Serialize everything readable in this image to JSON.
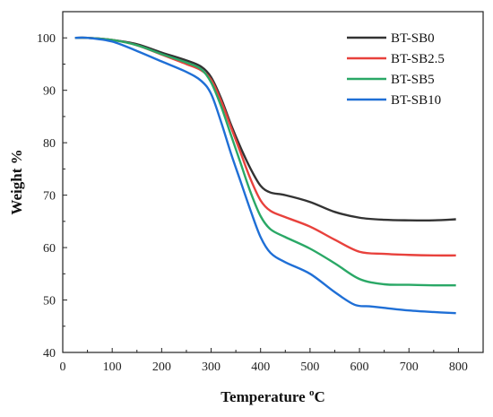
{
  "chart_data": {
    "type": "line",
    "xlabel": "Temperature",
    "xlabel_sup": "o",
    "xlabel_unit": "C",
    "ylabel": "Weight %",
    "xlim": [
      0,
      850
    ],
    "ylim": [
      40,
      105
    ],
    "xticks": [
      "0",
      "100",
      "200",
      "300",
      "400",
      "500",
      "600",
      "700",
      "800"
    ],
    "yticks": [
      "40",
      "50",
      "60",
      "70",
      "80",
      "90",
      "100"
    ],
    "grid": false,
    "legend_position": "top-right",
    "series": [
      {
        "name": "BT-SB0",
        "color": "#333333",
        "x": [
          25,
          50,
          100,
          150,
          200,
          250,
          280,
          300,
          320,
          340,
          360,
          380,
          400,
          420,
          450,
          500,
          550,
          600,
          650,
          700,
          750,
          795
        ],
        "y": [
          100,
          100,
          99.6,
          98.8,
          97.2,
          95.7,
          94.5,
          92.5,
          88.5,
          83.5,
          79,
          75,
          71.8,
          70.5,
          70,
          68.7,
          66.8,
          65.7,
          65.3,
          65.2,
          65.2,
          65.4
        ]
      },
      {
        "name": "BT-SB2.5",
        "color": "#e8413c",
        "x": [
          25,
          50,
          100,
          150,
          200,
          250,
          280,
          300,
          320,
          340,
          360,
          380,
          400,
          420,
          450,
          500,
          550,
          600,
          650,
          700,
          750,
          795
        ],
        "y": [
          100,
          100,
          99.6,
          98.6,
          96.8,
          95,
          93.8,
          92,
          88,
          83,
          78,
          73,
          69,
          67,
          65.8,
          64,
          61.5,
          59.2,
          58.8,
          58.6,
          58.5,
          58.5
        ]
      },
      {
        "name": "BT-SB5",
        "color": "#2aa866",
        "x": [
          25,
          50,
          100,
          150,
          200,
          250,
          280,
          300,
          320,
          340,
          360,
          380,
          400,
          420,
          450,
          500,
          550,
          600,
          650,
          700,
          750,
          795
        ],
        "y": [
          100,
          100,
          99.6,
          98.6,
          96.9,
          95.3,
          94,
          91.5,
          87,
          81.5,
          76,
          70.5,
          66,
          63.5,
          62,
          59.8,
          57,
          54,
          53,
          52.9,
          52.8,
          52.8
        ]
      },
      {
        "name": "BT-SB10",
        "color": "#1f6fd6",
        "x": [
          25,
          50,
          100,
          150,
          200,
          250,
          280,
          300,
          320,
          340,
          360,
          380,
          400,
          420,
          450,
          500,
          550,
          590,
          620,
          650,
          700,
          750,
          795
        ],
        "y": [
          100,
          100,
          99.3,
          97.5,
          95.5,
          93.5,
          91.8,
          89.3,
          84,
          78,
          72.5,
          67,
          62,
          59,
          57.2,
          55,
          51.5,
          49.1,
          48.8,
          48.5,
          48,
          47.7,
          47.5
        ]
      }
    ]
  }
}
